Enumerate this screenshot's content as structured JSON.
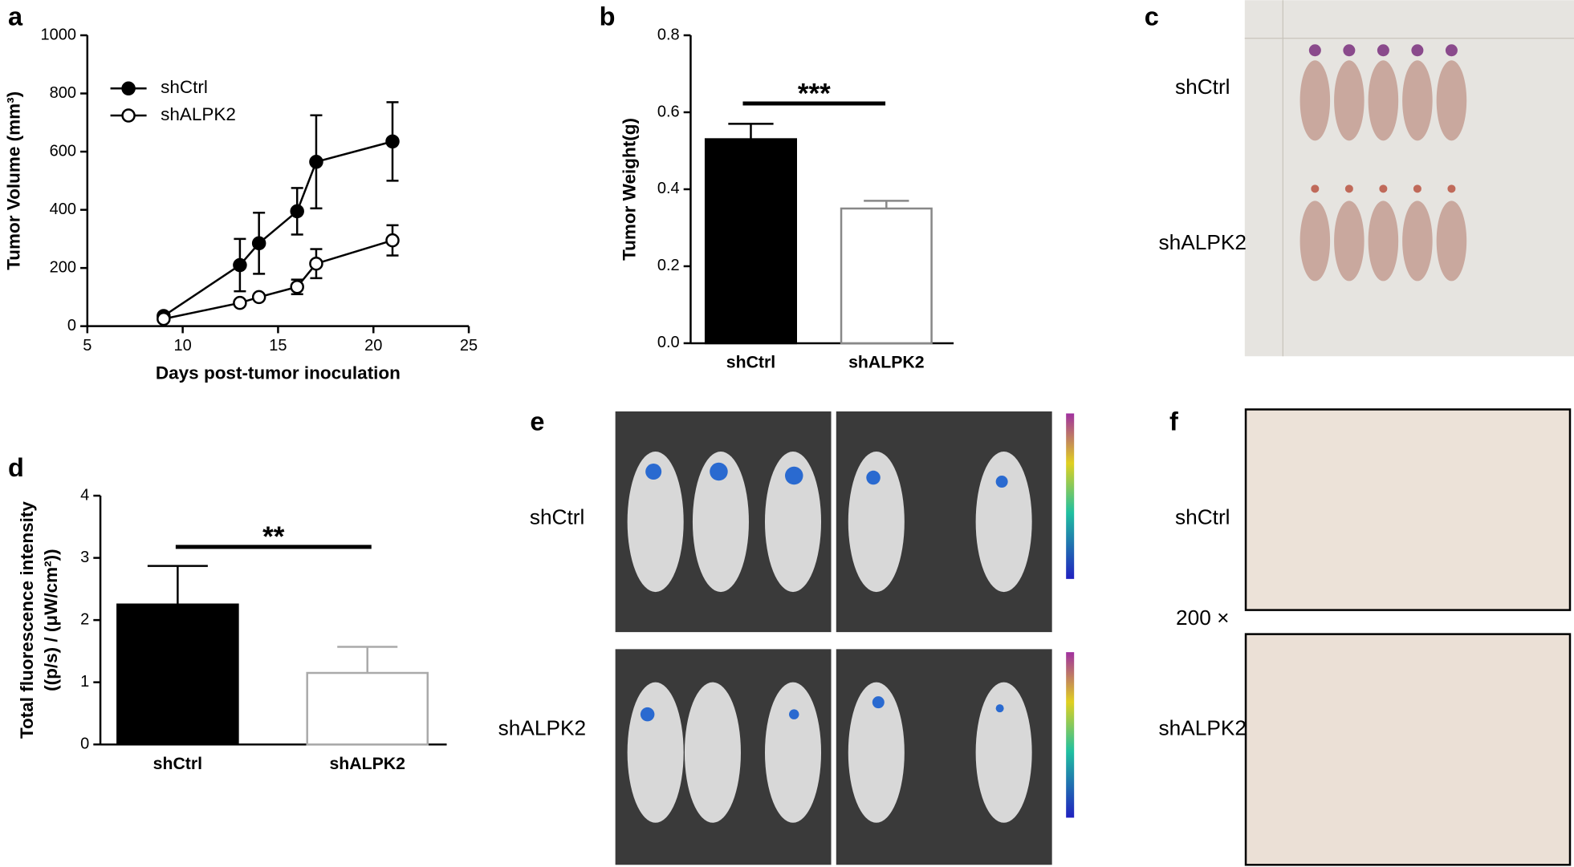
{
  "chart_data": [
    {
      "type": "line",
      "panel": "a",
      "xlabel": "Days post-tumor inoculation",
      "ylabel": "Tumor Volume (mm³)",
      "x": [
        9,
        13,
        14,
        16,
        17,
        21
      ],
      "series": [
        {
          "name": "shCtrl",
          "color": "#000000",
          "marker_fill": "#000000",
          "values": [
            35,
            210,
            285,
            395,
            565,
            635
          ],
          "errors": [
            5,
            90,
            105,
            80,
            160,
            135
          ]
        },
        {
          "name": "shALPK2",
          "color": "#000000",
          "marker_fill": "#ffffff",
          "values": [
            25,
            80,
            100,
            135,
            215,
            295
          ],
          "errors": [
            0,
            0,
            0,
            25,
            50,
            52
          ]
        }
      ],
      "xlim": [
        5,
        25
      ],
      "xticks": [
        5,
        10,
        15,
        20,
        25
      ],
      "ylim": [
        0,
        1000
      ],
      "yticks": [
        0,
        200,
        400,
        600,
        800,
        1000
      ],
      "legend": "upper left"
    },
    {
      "type": "bar",
      "panel": "b",
      "ylabel": "Tumor Weight(g)",
      "categories": [
        "shCtrl",
        "shALPK2"
      ],
      "values": [
        0.53,
        0.35
      ],
      "errors": [
        0.04,
        0.02
      ],
      "colors": [
        "#000000",
        "#ffffff"
      ],
      "edge_colors": [
        "#000000",
        "#888888"
      ],
      "ylim": [
        0,
        0.8
      ],
      "yticks": [
        {
          "value": 0,
          "label": "0.0"
        },
        0.2,
        0.4,
        0.6,
        0.8
      ],
      "annotation": "***"
    },
    {
      "type": "bar",
      "panel": "d",
      "ylabel": [
        "Total fluorescence intensity",
        "((p/s)  / (μW/cm²))"
      ],
      "categories": [
        "shCtrl",
        "shALPK2"
      ],
      "values": [
        2.25,
        1.15
      ],
      "errors": [
        0.62,
        0.42
      ],
      "colors": [
        "#000000",
        "#ffffff"
      ],
      "edge_colors": [
        "#000000",
        "#aaaaaa"
      ],
      "ylim": [
        0,
        4
      ],
      "yticks": [
        0,
        1,
        2,
        3,
        4
      ],
      "annotation": "**"
    }
  ],
  "image_panels": [
    {
      "panel": "c",
      "labels": [
        "shCtrl",
        "shALPK2"
      ]
    },
    {
      "panel": "e",
      "labels": [
        "shCtrl",
        "shALPK2"
      ]
    },
    {
      "panel": "f",
      "labels": [
        "shCtrl",
        "200 ×",
        "shALPK2"
      ]
    }
  ]
}
